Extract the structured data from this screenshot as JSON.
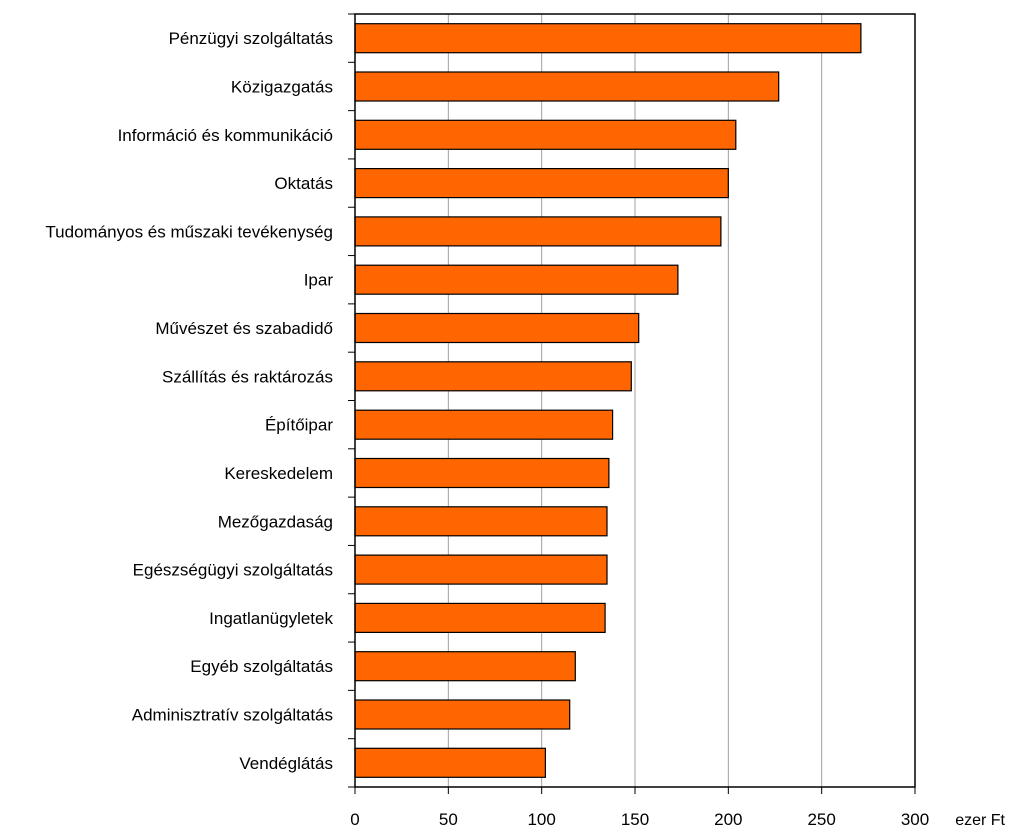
{
  "colors": {
    "bar_fill": "#ff6600",
    "bar_stroke": "#000000",
    "gridline": "#a0a0a0",
    "frame": "#000000",
    "background": "#ffffff"
  },
  "chart_data": {
    "type": "bar",
    "orientation": "horizontal",
    "categories": [
      "Pénzügyi szolgáltatás",
      "Közigazgatás",
      "Információ és kommunikáció",
      "Oktatás",
      "Tudományos és műszaki tevékenység",
      "Ipar",
      "Művészet és szabadidő",
      "Szállítás és raktározás",
      "Építőipar",
      "Kereskedelem",
      "Mezőgazdaság",
      "Egészségügyi szolgáltatás",
      "Ingatlanügyletek",
      "Egyéb szolgáltatás",
      "Adminisztratív szolgáltatás",
      "Vendéglátás"
    ],
    "values": [
      271,
      227,
      204,
      200,
      196,
      173,
      152,
      148,
      138,
      136,
      135,
      135,
      134,
      118,
      115,
      102
    ],
    "xlim": [
      0,
      300
    ],
    "xticks": [
      0,
      50,
      100,
      150,
      200,
      250,
      300
    ],
    "xlabel": "ezer Ft",
    "grid": "vertical",
    "legend": "none"
  }
}
